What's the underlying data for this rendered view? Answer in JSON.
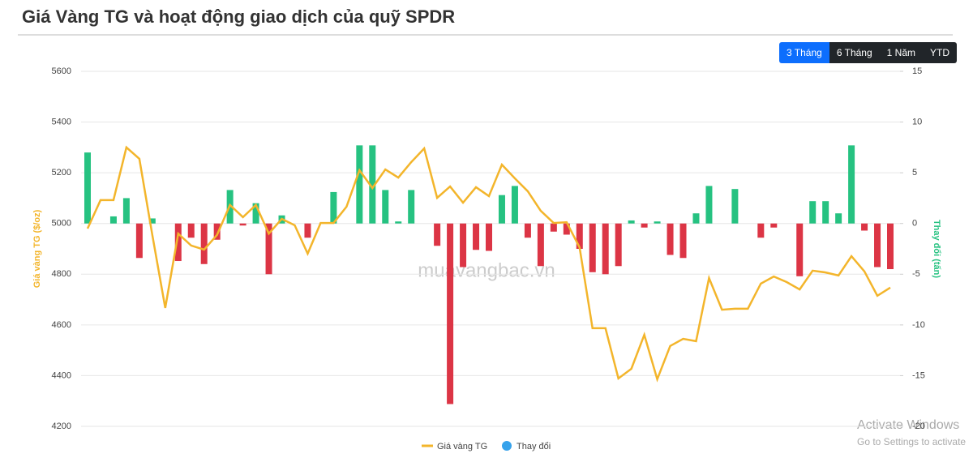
{
  "header": {
    "title": "Giá Vàng TG và hoạt động giao dịch của quỹ SPDR",
    "buttons": [
      "3 Tháng",
      "6 Tháng",
      "1 Năm",
      "YTD"
    ],
    "active_button": 0
  },
  "watermark": "muavangbac.vn",
  "overlay": [
    "Activate Windows",
    "Go to Settings to activate"
  ],
  "chart_data": {
    "type": "combo",
    "ylabel": "Giá vàng TG ($/oz)",
    "y2label": "Thay đổi (tấn)",
    "ylim": [
      4200,
      5600
    ],
    "yticks": [
      4200,
      4400,
      4600,
      4800,
      5000,
      5200,
      5400,
      5600
    ],
    "y2lim": [
      -20,
      15
    ],
    "y2ticks": [
      -20,
      -15,
      -10,
      -5,
      0,
      5,
      10,
      15
    ],
    "grid": true,
    "legend": "bottom",
    "series": [
      {
        "name": "Giá vàng TG",
        "type": "line",
        "color": "#f3b52b",
        "axis": "y",
        "values": [
          4980,
          5092,
          5092,
          5300,
          5255,
          4955,
          4667,
          4960,
          4913,
          4897,
          4955,
          5073,
          5025,
          5073,
          4960,
          5018,
          4993,
          4881,
          5002,
          5002,
          5066,
          5210,
          5140,
          5213,
          5181,
          5242,
          5296,
          5101,
          5146,
          5082,
          5143,
          5108,
          5232,
          5178,
          5127,
          5050,
          5002,
          5005,
          4906,
          4587,
          4587,
          4389,
          4427,
          4561,
          4386,
          4517,
          4545,
          4536,
          4785,
          4660,
          4664,
          4664,
          4763,
          4791,
          4769,
          4740,
          4814,
          4807,
          4795,
          4871,
          4811,
          4715,
          4747
        ]
      },
      {
        "name": "Thay đổi",
        "type": "bar",
        "color": "#36a2eb",
        "up_color": "#26c281",
        "down_color": "#dc3545",
        "axis": "y2",
        "values": [
          7,
          0,
          0.7,
          2.5,
          -3.4,
          0.5,
          0,
          -3.7,
          -1.4,
          -4,
          -1.6,
          3.3,
          -0.2,
          2,
          -5,
          0.8,
          0,
          -1.4,
          0,
          3.1,
          0,
          7.7,
          7.7,
          3.3,
          0.2,
          3.3,
          0,
          -2.2,
          -17.8,
          -4.3,
          -2.6,
          -2.7,
          2.8,
          3.7,
          -1.4,
          -4.2,
          -0.8,
          -1.1,
          -2.5,
          -4.8,
          -5,
          -4.2,
          0.3,
          -0.4,
          0.2,
          -3.1,
          -3.4,
          1,
          3.7,
          0,
          3.4,
          0,
          -1.4,
          -0.4,
          0,
          -5.2,
          2.2,
          2.2,
          1,
          7.7,
          -0.7,
          -4.3,
          -4.5
        ]
      }
    ]
  }
}
